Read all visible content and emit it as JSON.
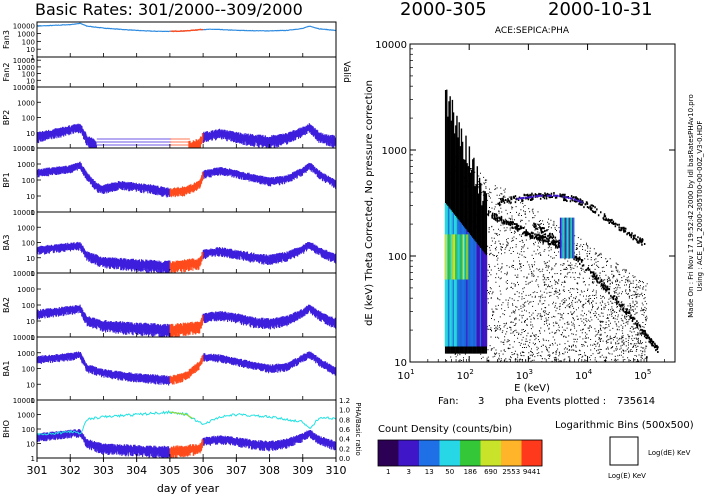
{
  "header": {
    "left_title": "Basic Rates: 301/2000--309/2000",
    "right_left": "2000-305",
    "right_right": "2000-10-31"
  },
  "chart_data": [
    {
      "type": "line",
      "panel": "basic-rates",
      "xlabel": "day of year",
      "xlim": [
        301,
        310
      ],
      "x_ticks": [
        "301",
        "302",
        "303",
        "304",
        "305",
        "306",
        "307",
        "308",
        "309",
        "310"
      ],
      "highlight_range": [
        305,
        306
      ],
      "colors": {
        "series": "#3c1edc",
        "highlight": "#ff4a1c",
        "ratio": "#23e1e1",
        "ratio_alt": "#8fd83c"
      },
      "panels": [
        {
          "label": "Fan3",
          "ticks": [
            "10000",
            "1000",
            "100",
            "10",
            "1"
          ],
          "ylim": [
            1,
            30000
          ],
          "style": "line",
          "color": "#2e8be0",
          "values": [
            [
              301.0,
              9000
            ],
            [
              301.5,
              11000
            ],
            [
              302.0,
              14000
            ],
            [
              302.3,
              20000
            ],
            [
              302.5,
              9000
            ],
            [
              303.0,
              5000
            ],
            [
              303.5,
              3500
            ],
            [
              304.0,
              2500
            ],
            [
              304.5,
              2000
            ],
            [
              305.0,
              1900
            ],
            [
              305.5,
              2200
            ],
            [
              305.9,
              3200
            ],
            [
              306.3,
              3500
            ],
            [
              307.0,
              2600
            ],
            [
              307.5,
              2300
            ],
            [
              308.0,
              2200
            ],
            [
              308.5,
              2500
            ],
            [
              309.0,
              4500
            ],
            [
              309.2,
              9000
            ],
            [
              309.5,
              4000
            ],
            [
              310.0,
              2500
            ]
          ]
        },
        {
          "label": "Fan2",
          "ticks": [
            "10000",
            "1000",
            "100",
            "10",
            "1"
          ],
          "ylim": [
            1,
            30000
          ],
          "style": "empty",
          "right_label": "Valid",
          "values": []
        },
        {
          "label": "BP2",
          "ticks": [
            "10000",
            "1000",
            "100",
            "10",
            "1"
          ],
          "ylim": [
            1,
            10000
          ],
          "style": "scatter",
          "values": [
            [
              301.0,
              6
            ],
            [
              301.5,
              10
            ],
            [
              302.0,
              18
            ],
            [
              302.3,
              25
            ],
            [
              302.5,
              4
            ],
            [
              303.0,
              0
            ],
            [
              305.0,
              0
            ],
            [
              305.9,
              2
            ],
            [
              306.0,
              6
            ],
            [
              306.5,
              10
            ],
            [
              307.0,
              6
            ],
            [
              307.5,
              4
            ],
            [
              308.0,
              3
            ],
            [
              308.5,
              5
            ],
            [
              309.0,
              14
            ],
            [
              309.2,
              25
            ],
            [
              309.5,
              6
            ],
            [
              310.0,
              3
            ]
          ]
        },
        {
          "label": "BP1",
          "ticks": [
            "10000",
            "1000",
            "100",
            "10",
            "1"
          ],
          "ylim": [
            1,
            10000
          ],
          "style": "scatter",
          "values": [
            [
              301.0,
              300
            ],
            [
              301.5,
              420
            ],
            [
              302.0,
              550
            ],
            [
              302.3,
              900
            ],
            [
              302.5,
              200
            ],
            [
              302.8,
              40
            ],
            [
              303.0,
              30
            ],
            [
              303.5,
              55
            ],
            [
              304.0,
              40
            ],
            [
              304.5,
              30
            ],
            [
              305.0,
              18
            ],
            [
              305.5,
              25
            ],
            [
              305.9,
              60
            ],
            [
              306.0,
              250
            ],
            [
              306.5,
              420
            ],
            [
              307.0,
              280
            ],
            [
              307.5,
              150
            ],
            [
              308.0,
              90
            ],
            [
              308.5,
              120
            ],
            [
              309.0,
              400
            ],
            [
              309.2,
              900
            ],
            [
              309.5,
              250
            ],
            [
              310.0,
              60
            ]
          ]
        },
        {
          "label": "BA3",
          "ticks": [
            "10000",
            "1000",
            "100",
            "10",
            "1"
          ],
          "ylim": [
            1,
            10000
          ],
          "style": "scatter",
          "values": [
            [
              301.0,
              35
            ],
            [
              301.5,
              45
            ],
            [
              302.0,
              60
            ],
            [
              302.3,
              70
            ],
            [
              302.5,
              15
            ],
            [
              303.0,
              6
            ],
            [
              304.0,
              4
            ],
            [
              305.0,
              3
            ],
            [
              305.9,
              5
            ],
            [
              306.0,
              20
            ],
            [
              306.5,
              30
            ],
            [
              307.0,
              20
            ],
            [
              307.5,
              12
            ],
            [
              308.0,
              9
            ],
            [
              308.5,
              14
            ],
            [
              309.0,
              40
            ],
            [
              309.2,
              80
            ],
            [
              309.5,
              30
            ],
            [
              310.0,
              10
            ]
          ]
        },
        {
          "label": "BA2",
          "ticks": [
            "10000",
            "1000",
            "100",
            "10",
            "1"
          ],
          "ylim": [
            1,
            10000
          ],
          "style": "scatter",
          "values": [
            [
              301.0,
              30
            ],
            [
              301.5,
              40
            ],
            [
              302.0,
              55
            ],
            [
              302.3,
              65
            ],
            [
              302.5,
              12
            ],
            [
              303.0,
              6
            ],
            [
              304.0,
              4
            ],
            [
              305.0,
              3
            ],
            [
              305.9,
              5
            ],
            [
              306.0,
              18
            ],
            [
              306.5,
              25
            ],
            [
              307.0,
              18
            ],
            [
              307.5,
              10
            ],
            [
              308.0,
              8
            ],
            [
              308.5,
              12
            ],
            [
              309.0,
              35
            ],
            [
              309.2,
              70
            ],
            [
              309.5,
              25
            ],
            [
              310.0,
              8
            ]
          ]
        },
        {
          "label": "BA1",
          "ticks": [
            "10000",
            "1000",
            "100",
            "10",
            "1"
          ],
          "ylim": [
            1,
            10000
          ],
          "style": "scatter",
          "values": [
            [
              301.0,
              400
            ],
            [
              301.5,
              500
            ],
            [
              302.0,
              650
            ],
            [
              302.3,
              800
            ],
            [
              302.5,
              120
            ],
            [
              303.0,
              60
            ],
            [
              303.5,
              40
            ],
            [
              304.0,
              30
            ],
            [
              304.5,
              25
            ],
            [
              305.0,
              20
            ],
            [
              305.5,
              40
            ],
            [
              305.9,
              200
            ],
            [
              306.0,
              600
            ],
            [
              306.5,
              500
            ],
            [
              307.0,
              300
            ],
            [
              307.5,
              180
            ],
            [
              308.0,
              110
            ],
            [
              308.5,
              140
            ],
            [
              309.0,
              500
            ],
            [
              309.2,
              900
            ],
            [
              309.5,
              300
            ],
            [
              310.0,
              70
            ]
          ]
        },
        {
          "label": "BHO",
          "ticks": [
            "10000",
            "1000",
            "100",
            "10",
            "1"
          ],
          "ylim": [
            1,
            10000
          ],
          "style": "scatter",
          "right_label": "PHA/Basic ratio",
          "right_ticks": [
            "1.2",
            "1.0",
            "0.8",
            "0.6",
            "0.4",
            "0.2",
            "0.0"
          ],
          "ratio": [
            [
              301.0,
              0.5
            ],
            [
              301.5,
              0.45
            ],
            [
              302.0,
              0.55
            ],
            [
              302.3,
              0.5
            ],
            [
              302.5,
              0.8
            ],
            [
              303.0,
              0.85
            ],
            [
              304.0,
              0.9
            ],
            [
              305.0,
              0.95
            ],
            [
              305.5,
              0.9
            ],
            [
              306.0,
              0.7
            ],
            [
              306.5,
              0.85
            ],
            [
              307.0,
              0.9
            ],
            [
              308.0,
              0.85
            ],
            [
              309.0,
              0.75
            ],
            [
              309.2,
              0.6
            ],
            [
              309.5,
              0.85
            ],
            [
              310.0,
              0.8
            ]
          ],
          "values": [
            [
              301.0,
              30
            ],
            [
              301.5,
              40
            ],
            [
              302.0,
              55
            ],
            [
              302.3,
              60
            ],
            [
              302.5,
              12
            ],
            [
              303.0,
              5
            ],
            [
              304.0,
              4
            ],
            [
              305.0,
              3
            ],
            [
              305.9,
              5
            ],
            [
              306.0,
              15
            ],
            [
              306.5,
              22
            ],
            [
              307.0,
              16
            ],
            [
              307.5,
              10
            ],
            [
              308.0,
              8
            ],
            [
              308.5,
              12
            ],
            [
              309.0,
              30
            ],
            [
              309.2,
              60
            ],
            [
              309.5,
              20
            ],
            [
              310.0,
              8
            ]
          ]
        }
      ]
    },
    {
      "type": "heatmap",
      "panel": "pha",
      "title": "ACE:SEPICA:PHA",
      "xlabel": "E (keV)",
      "ylabel": "dE (keV) Theta Corrected, No pressure correction",
      "xscale": "log",
      "yscale": "log",
      "xlim": [
        10,
        300000
      ],
      "ylim": [
        10,
        10000
      ],
      "x_ticks": [
        {
          "base": "10",
          "exp": "1"
        },
        {
          "base": "10",
          "exp": "2"
        },
        {
          "base": "10",
          "exp": "3"
        },
        {
          "base": "10",
          "exp": "4"
        },
        {
          "base": "10",
          "exp": "5"
        }
      ],
      "y_ticks": [
        "10000",
        "1000",
        "100",
        "10"
      ],
      "fan_label": "Fan:",
      "fan_value": "3",
      "events_label": "pha Events plotted :",
      "events_value": "735614",
      "side_note": [
        "Made On : Fri Nov 17 19:52:42 2000  by Idl basRatesPHAv10.pro",
        "Using : ACE_LV1_2000-305T00-00-00Z_V3-0.HDF"
      ],
      "tracks": [
        {
          "name": "upper",
          "points": [
            [
              300,
              320
            ],
            [
              700,
              350
            ],
            [
              1500,
              370
            ],
            [
              3000,
              370
            ],
            [
              6000,
              340
            ],
            [
              12000,
              280
            ],
            [
              25000,
              210
            ],
            [
              50000,
              160
            ],
            [
              90000,
              130
            ]
          ]
        },
        {
          "name": "lower",
          "points": [
            [
              1200,
              200
            ],
            [
              2500,
              150
            ],
            [
              5000,
              110
            ],
            [
              10000,
              75
            ],
            [
              20000,
              50
            ],
            [
              40000,
              32
            ],
            [
              80000,
              20
            ],
            [
              150000,
              13
            ]
          ]
        },
        {
          "name": "mid",
          "points": [
            [
              200,
              250
            ],
            [
              500,
              200
            ],
            [
              1000,
              160
            ],
            [
              2000,
              140
            ],
            [
              4000,
              120
            ],
            [
              5000,
              110
            ]
          ]
        }
      ],
      "column_range": [
        [
          40,
          15,
          3000
        ],
        [
          200,
          15,
          1000
        ]
      ]
    }
  ],
  "legend": {
    "title": "Count Density (counts/bin)",
    "bins_title": "Logarithmic Bins (500x500)",
    "colors": [
      "#2b0055",
      "#3f17c8",
      "#1f6fe6",
      "#28d7e6",
      "#34c738",
      "#c8e32a",
      "#ffb42a",
      "#ff3a1c"
    ],
    "labels": [
      "1",
      "3",
      "13",
      "50",
      "186",
      "690",
      "2553",
      "9441"
    ],
    "bin_y_label": "Log(dE) KeV",
    "bin_x_label": "Log(E) KeV"
  }
}
